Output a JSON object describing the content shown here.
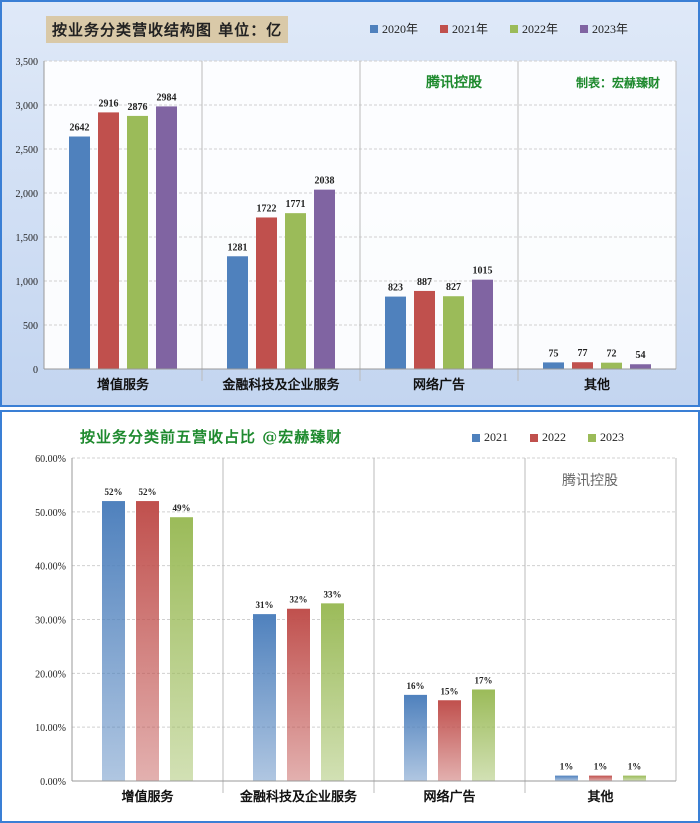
{
  "chart_data": [
    {
      "type": "bar",
      "title": "按业务分类营收结构图 单位：亿",
      "categories": [
        "增值服务",
        "金融科技及企业服务",
        "网络广告",
        "其他"
      ],
      "series": [
        {
          "name": "2020年",
          "values": [
            2642,
            1281,
            823,
            75
          ]
        },
        {
          "name": "2021年",
          "values": [
            2916,
            1722,
            887,
            77
          ]
        },
        {
          "name": "2022年",
          "values": [
            2876,
            1771,
            827,
            72
          ]
        },
        {
          "name": "2023年",
          "values": [
            2984,
            2038,
            1015,
            54
          ]
        }
      ],
      "data_labels": [
        [
          "2642",
          "2916",
          "2876",
          "2984"
        ],
        [
          "1281",
          "1722",
          "1771",
          "2038"
        ],
        [
          "823",
          "887",
          "827",
          "1015"
        ],
        [
          "75",
          "77",
          "72",
          "54"
        ]
      ],
      "ylim": [
        0,
        3500
      ],
      "yticks": [
        "0",
        "500",
        "1,000",
        "1,500",
        "2,000",
        "2,500",
        "3,000",
        "3,500"
      ],
      "annotations": [
        "腾讯控股",
        "制表：宏赫臻财"
      ],
      "legend": "top",
      "grid": true
    },
    {
      "type": "bar",
      "title": "按业务分类前五营收占比  @宏赫臻财",
      "categories": [
        "增值服务",
        "金融科技及企业服务",
        "网络广告",
        "其他"
      ],
      "series": [
        {
          "name": "2021",
          "values": [
            52,
            31,
            16,
            1
          ]
        },
        {
          "name": "2022",
          "values": [
            52,
            32,
            15,
            1
          ]
        },
        {
          "name": "2023",
          "values": [
            49,
            33,
            17,
            1
          ]
        }
      ],
      "data_labels": [
        [
          "52%",
          "52%",
          "49%"
        ],
        [
          "31%",
          "32%",
          "33%"
        ],
        [
          "16%",
          "15%",
          "17%"
        ],
        [
          "1%",
          "1%",
          "1%"
        ]
      ],
      "ylim": [
        0,
        60
      ],
      "yticks": [
        "0.00%",
        "10.00%",
        "20.00%",
        "30.00%",
        "40.00%",
        "50.00%",
        "60.00%"
      ],
      "annotations": [
        "腾讯控股"
      ],
      "legend": "top",
      "grid": true
    }
  ],
  "colors": {
    "c1": [
      "#4f81bd",
      "#c0504d",
      "#9bbb59",
      "#8064a2"
    ],
    "c2": [
      "#4f81bd",
      "#c0504d",
      "#9bbb59"
    ],
    "anno1": "#1e8a2e",
    "anno2": "#666666"
  }
}
